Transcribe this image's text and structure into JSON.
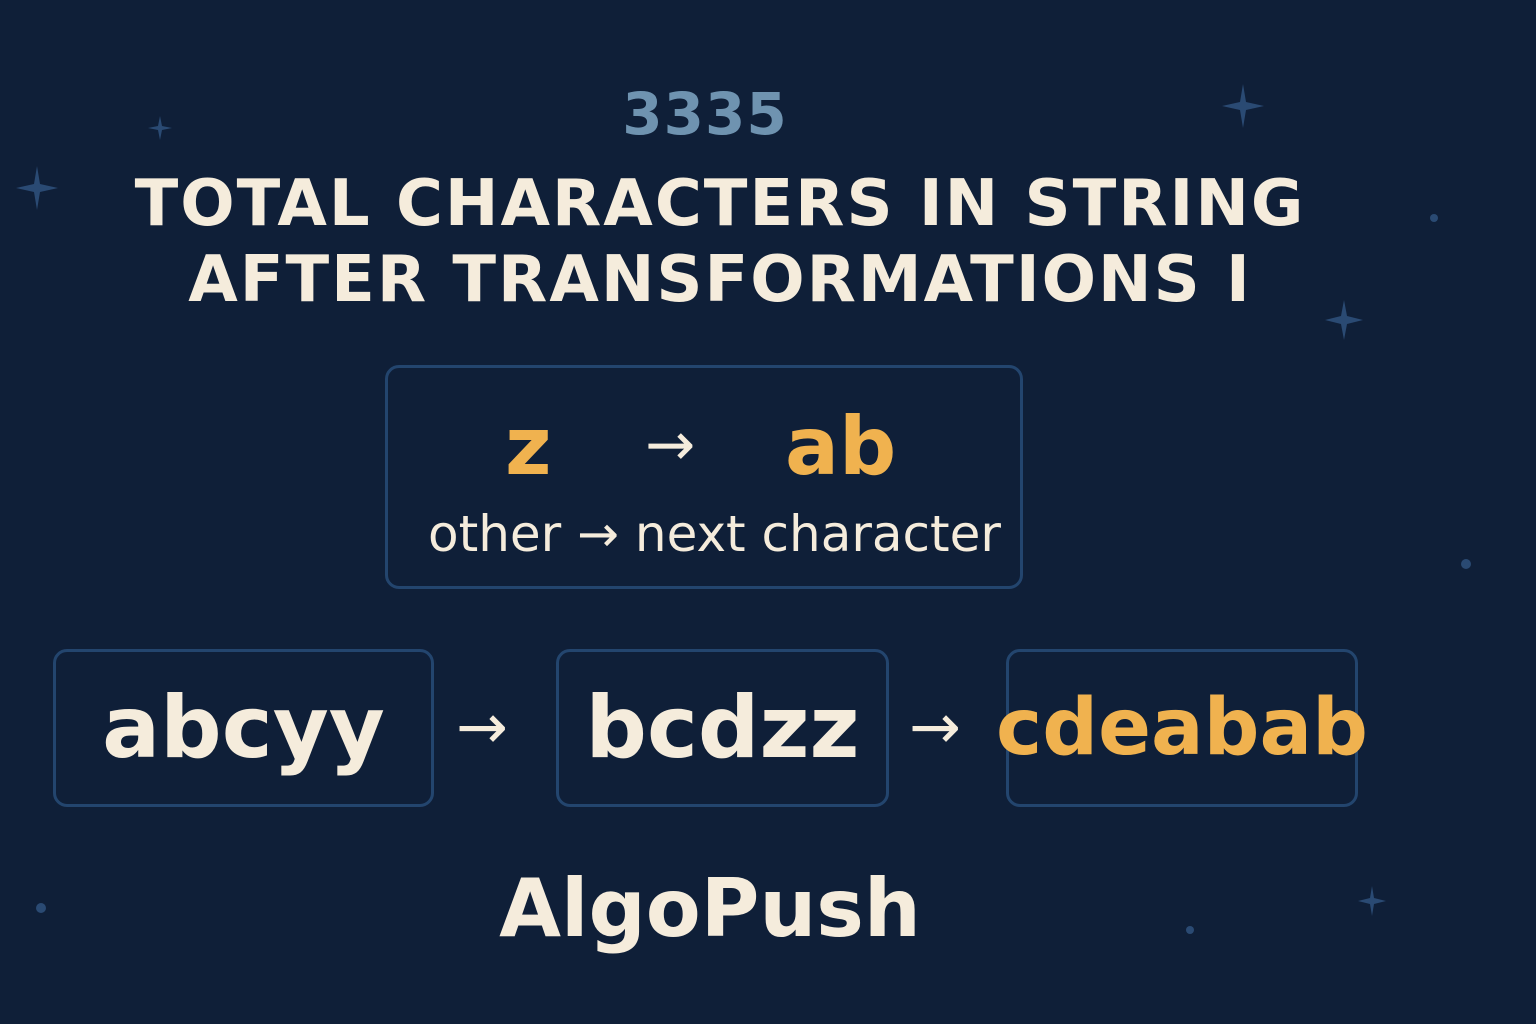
{
  "problem_number": "3335",
  "title": {
    "line1": "TOTAL CHARACTERS IN STRING",
    "line2": "AFTER TRANSFORMATIONS I"
  },
  "rule": {
    "from": "z",
    "arrow": "→",
    "to": "ab",
    "other": "other → next character"
  },
  "steps": [
    {
      "text": "abcyy"
    },
    {
      "text": "bcdzz"
    },
    {
      "text": "cdeabab"
    }
  ],
  "step_arrow": "→",
  "brand": "AlgoPush",
  "colors": {
    "background": "#0f1f38",
    "accent": "#f0b24f",
    "text": "#f5ecdc",
    "number": "#6f93b0",
    "box_border": "#23456e"
  }
}
